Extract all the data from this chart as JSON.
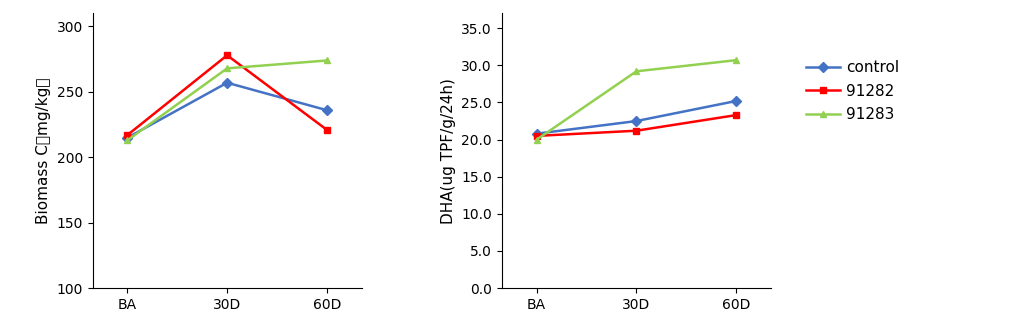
{
  "x_labels": [
    "BA",
    "30D",
    "60D"
  ],
  "left_chart": {
    "ylabel": "Biomass C（mg/kg）",
    "ylim": [
      100,
      310
    ],
    "yticks": [
      100,
      150,
      200,
      250,
      300
    ],
    "series": {
      "control": [
        215,
        257,
        236
      ],
      "91282": [
        217,
        278,
        221
      ],
      "91283": [
        213,
        268,
        274
      ]
    }
  },
  "right_chart": {
    "ylabel": "DHA(ug TPF/g/24h)",
    "ylim": [
      0.0,
      37.0
    ],
    "yticks": [
      0.0,
      5.0,
      10.0,
      15.0,
      20.0,
      25.0,
      30.0,
      35.0
    ],
    "series": {
      "control": [
        20.8,
        22.5,
        25.2
      ],
      "91282": [
        20.5,
        21.2,
        23.3
      ],
      "91283": [
        20.0,
        29.2,
        30.7
      ]
    }
  },
  "colors": {
    "control": "#4472C4",
    "91282": "#FF0000",
    "91283": "#92D050"
  },
  "markers": {
    "control": "D",
    "91282": "s",
    "91283": "^"
  },
  "legend_labels": [
    "control",
    "91282",
    "91283"
  ],
  "background_color": "#ffffff",
  "markersize": 5,
  "linewidth": 1.8,
  "tick_fontsize": 10,
  "label_fontsize": 11,
  "legend_fontsize": 11
}
